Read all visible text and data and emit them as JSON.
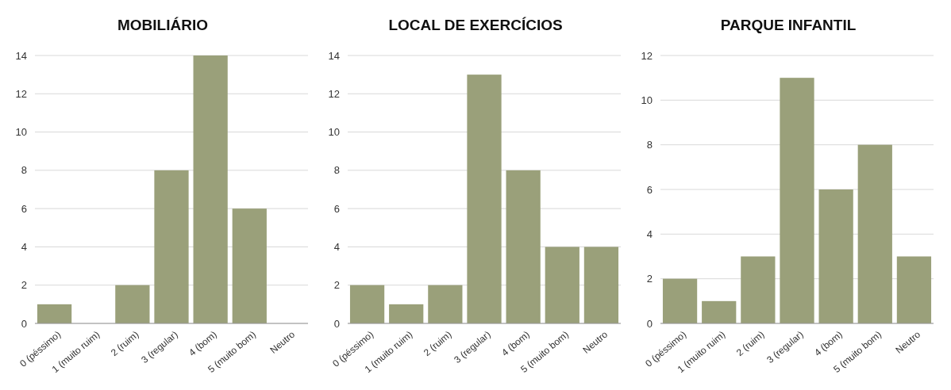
{
  "chart_data": [
    {
      "type": "bar",
      "title": "MOBILIÁRIO",
      "categories": [
        "0 (péssimo)",
        "1 (muito ruim)",
        "2 (ruim)",
        "3 (regular)",
        "4 (bom)",
        "5 (muito bom)",
        "Neutro"
      ],
      "values": [
        1,
        0,
        2,
        8,
        14,
        6,
        0
      ],
      "color": "#9aa07a",
      "ylim": [
        0,
        14
      ],
      "yticks": [
        0,
        2,
        4,
        6,
        8,
        10,
        12,
        14
      ],
      "grid": "y"
    },
    {
      "type": "bar",
      "title": "LOCAL DE EXERCÍCIOS",
      "categories": [
        "0 (péssimo)",
        "1 (muito ruim)",
        "2 (ruim)",
        "3 (regular)",
        "4 (bom)",
        "5 (muito bom)",
        "Neutro"
      ],
      "values": [
        2,
        1,
        2,
        13,
        8,
        4,
        4
      ],
      "color": "#9aa07a",
      "ylim": [
        0,
        14
      ],
      "yticks": [
        0,
        2,
        4,
        6,
        8,
        10,
        12,
        14
      ],
      "grid": "y"
    },
    {
      "type": "bar",
      "title": "PARQUE INFANTIL",
      "categories": [
        "0 (péssimo)",
        "1 (muito ruim)",
        "2 (ruim)",
        "3 (regular)",
        "4 (bom)",
        "5 (muito bom)",
        "Neutro"
      ],
      "values": [
        2,
        1,
        3,
        11,
        6,
        8,
        3
      ],
      "color": "#9aa07a",
      "ylim": [
        0,
        12
      ],
      "yticks": [
        0,
        2,
        4,
        6,
        8,
        10,
        12
      ],
      "grid": "y"
    }
  ]
}
